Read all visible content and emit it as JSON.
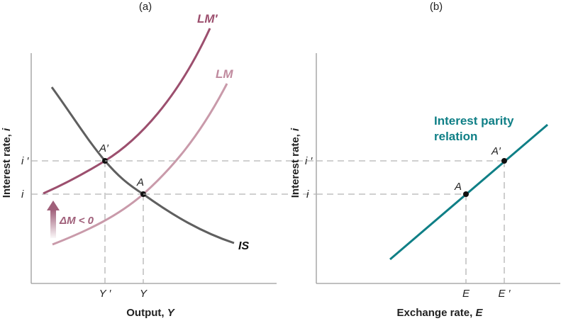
{
  "panel_a": {
    "label": "(a)",
    "ylabel_prefix": "Interest rate, ",
    "ylabel_var": "i",
    "xlabel_prefix": "Output, ",
    "xlabel_var": "Y",
    "curves": {
      "is": "IS",
      "lm": "LM",
      "lm_prime": "LM′"
    },
    "points": {
      "a": "A",
      "a_prime": "A′"
    },
    "y_ticks": {
      "i": "i",
      "i_prime": "i ′"
    },
    "x_ticks": {
      "y": "Y",
      "y_prime": "Y ′"
    },
    "shift_label": "ΔM < 0"
  },
  "panel_b": {
    "label": "(b)",
    "ylabel_prefix": "Interest rate, ",
    "ylabel_var": "i",
    "xlabel_prefix": "Exchange rate, ",
    "xlabel_var": "E",
    "curve_label_line1": "Interest parity",
    "curve_label_line2": "relation",
    "points": {
      "a": "A",
      "a_prime": "A′"
    },
    "y_ticks": {
      "i": "i",
      "i_prime": "i ′"
    },
    "x_ticks": {
      "e": "E",
      "e_prime": "E ′"
    }
  },
  "colors": {
    "is_curve": "#5f5f5f",
    "lm_curve": "#c99aaa",
    "lm_prime_curve": "#9c4f6e",
    "parity_curve": "#0f7f86",
    "axis": "#9a9a9a",
    "guide": "#b4b4b4",
    "arrow": "#a0607a"
  }
}
